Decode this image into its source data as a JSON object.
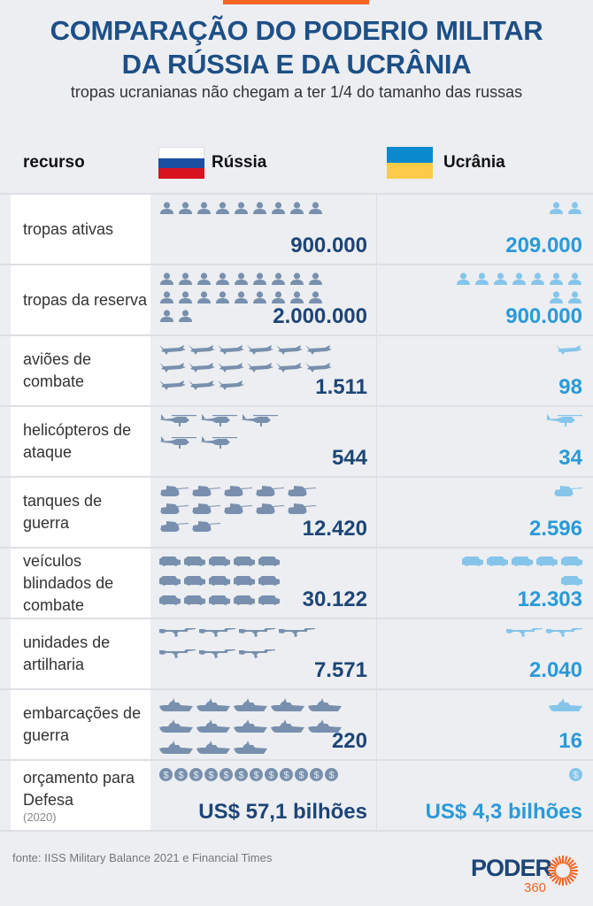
{
  "header": {
    "title_line1": "COMPARAÇÃO DO PODERIO MILITAR",
    "title_line2": "DA RÚSSIA E DA UCRÂNIA",
    "subtitle": "tropas ucranianas não chegam a ter 1/4 do tamanho das russas"
  },
  "columns": {
    "resource": "recurso",
    "russia": "Rússia",
    "ukraine": "Ucrânia"
  },
  "colors": {
    "accent": "#f26522",
    "title": "#1d4f86",
    "russia_value": "#1d4576",
    "ukraine_value": "#2a9ad8",
    "russia_icon": "#7890ad",
    "ukraine_icon": "#86c5ea"
  },
  "rows": [
    {
      "label": "tropas ativas",
      "icon": "soldier-icon",
      "russia": {
        "value": "900.000",
        "icons": 9
      },
      "ukraine": {
        "value": "209.000",
        "icons": 2
      }
    },
    {
      "label": "tropas da reserva",
      "icon": "soldier-icon",
      "russia": {
        "value": "2.000.000",
        "icons": 20
      },
      "ukraine": {
        "value": "900.000",
        "icons": 9
      }
    },
    {
      "label": "aviões de combate",
      "icon": "fighter-jet-icon",
      "russia": {
        "value": "1.511",
        "icons": 15
      },
      "ukraine": {
        "value": "98",
        "icons": 1
      }
    },
    {
      "label": "helicópteros de ataque",
      "icon": "helicopter-icon",
      "russia": {
        "value": "544",
        "icons": 5
      },
      "ukraine": {
        "value": "34",
        "icons": 1
      }
    },
    {
      "label": "tanques de guerra",
      "icon": "tank-icon",
      "russia": {
        "value": "12.420",
        "icons": 12
      },
      "ukraine": {
        "value": "2.596",
        "icons": 1
      }
    },
    {
      "label": "veículos blindados de combate",
      "icon": "armored-vehicle-icon",
      "russia": {
        "value": "30.122",
        "icons": 15
      },
      "ukraine": {
        "value": "12.303",
        "icons": 6
      }
    },
    {
      "label": "unidades de artilharia",
      "icon": "rifle-icon",
      "russia": {
        "value": "7.571",
        "icons": 7
      },
      "ukraine": {
        "value": "2.040",
        "icons": 2
      }
    },
    {
      "label": "embarcações de guerra",
      "icon": "warship-icon",
      "russia": {
        "value": "220",
        "icons": 13
      },
      "ukraine": {
        "value": "16",
        "icons": 1
      }
    },
    {
      "label": "orçamento para Defesa",
      "note": "(2020)",
      "icon": "dollar-coin-icon",
      "russia": {
        "value": "US$ 57,1 bilhões",
        "icons": 12
      },
      "ukraine": {
        "value": "US$ 4,3 bilhões",
        "icons": 1
      }
    }
  ],
  "footer": {
    "source": "fonte: IISS Military Balance 2021 e Financial Times",
    "logo_word": "PODER",
    "logo_number": "360"
  }
}
